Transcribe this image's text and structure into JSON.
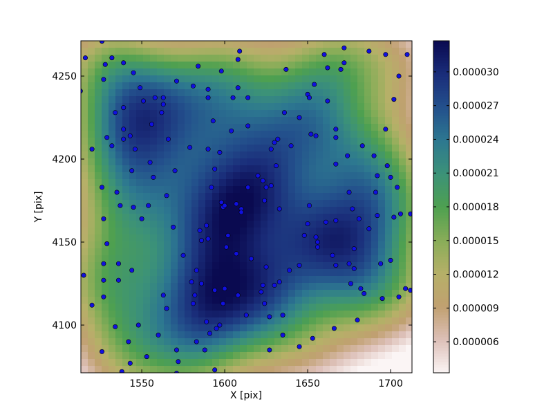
{
  "chart_data": {
    "type": "scatter-density",
    "xlabel": "X [pix]",
    "ylabel": "Y [pix]",
    "xlim": [
      1513.3,
      1712.9
    ],
    "ylim": [
      4071.25,
      4271.25
    ],
    "xticks": [
      1550,
      1600,
      1650,
      1700
    ],
    "yticks": [
      4100,
      4150,
      4200,
      4250
    ],
    "clim": [
      3.24e-06,
      3.276e-05
    ],
    "cticks": [
      {
        "value": 6e-06,
        "label": "0.000006"
      },
      {
        "value": 9e-06,
        "label": "0.000009"
      },
      {
        "value": 1.2e-05,
        "label": "0.000012"
      },
      {
        "value": 1.5e-05,
        "label": "0.000015"
      },
      {
        "value": 1.8e-05,
        "label": "0.000018"
      },
      {
        "value": 2.1e-05,
        "label": "0.000021"
      },
      {
        "value": 2.4e-05,
        "label": "0.000024"
      },
      {
        "value": 2.7e-05,
        "label": "0.000027"
      },
      {
        "value": 3e-05,
        "label": "0.000030"
      }
    ],
    "colormap": [
      "#fbf5f5",
      "#ddc0b8",
      "#c0a070",
      "#b6b068",
      "#88ad58",
      "#4ea050",
      "#3c9278",
      "#2d7890",
      "#23508c",
      "#1a2d7a",
      "#0a0a50"
    ],
    "series": [
      {
        "color": "#1010e0",
        "x": [
          1526,
          1516,
          1532,
          1528,
          1539,
          1527,
          1545,
          1513,
          1549,
          1558,
          1551,
          1563,
          1534,
          1539,
          1539,
          1529,
          1539,
          1532,
          1543,
          1556,
          1562,
          1563,
          1546,
          1566,
          1520,
          1526,
          1527,
          1535,
          1537,
          1545,
          1550,
          1544,
          1555,
          1557,
          1565,
          1570,
          1579,
          1571,
          1581,
          1590,
          1590,
          1584,
          1598,
          1609,
          1608,
          1608,
          1605,
          1614,
          1614,
          1604,
          1590,
          1597,
          1593,
          1630,
          1628,
          1632,
          1636,
          1640,
          1645,
          1650,
          1637,
          1651,
          1660,
          1654,
          1652,
          1662,
          1655,
          1662,
          1672,
          1672,
          1670,
          1667,
          1667,
          1674,
          1667,
          1687,
          1697,
          1710,
          1705,
          1702,
          1697,
          1683,
          1690,
          1698,
          1700,
          1692,
          1704,
          1691,
          1702,
          1712,
          1706,
          1675,
          1677,
          1681,
          1661,
          1667,
          1655,
          1656,
          1650,
          1651,
          1633,
          1631,
          1620,
          1623,
          1625,
          1614,
          1628,
          1624,
          1610,
          1607,
          1610,
          1599,
          1594,
          1592,
          1598,
          1600,
          1590,
          1585,
          1589,
          1586,
          1583,
          1602,
          1601,
          1616,
          1625,
          1623,
          1630,
          1633,
          1639,
          1645,
          1648,
          1656,
          1665,
          1667,
          1678,
          1678,
          1675,
          1687,
          1692,
          1694,
          1700,
          1705,
          1709,
          1712,
          1695,
          1682,
          1684,
          1676,
          1680,
          1666,
          1653,
          1645,
          1635,
          1627,
          1635,
          1627,
          1624,
          1622,
          1613,
          1600,
          1594,
          1591,
          1599,
          1597,
          1582,
          1586,
          1595,
          1580,
          1581,
          1589,
          1588,
          1583,
          1571,
          1572,
          1565,
          1563,
          1548,
          1542,
          1553,
          1543,
          1534,
          1527,
          1520,
          1527,
          1526,
          1536,
          1544,
          1536,
          1529,
          1527,
          1554,
          1569,
          1575,
          1560,
          1608,
          1607,
          1594,
          1571,
          1538,
          1515
        ],
        "values": [
          4271,
          4261,
          4261,
          4257,
          4258,
          4248,
          4252,
          4241,
          4243,
          4237,
          4235,
          4237,
          4228,
          4231,
          4218,
          4213,
          4212,
          4208,
          4214,
          4221,
          4228,
          4233,
          4206,
          4212,
          4206,
          4183,
          4164,
          4180,
          4172,
          4171,
          4164,
          4193,
          4198,
          4189,
          4178,
          4193,
          4207,
          4247,
          4244,
          4242,
          4237,
          4256,
          4253,
          4265,
          4260,
          4243,
          4237,
          4237,
          4220,
          4217,
          4206,
          4204,
          4223,
          4210,
          4206,
          4212,
          4228,
          4208,
          4225,
          4239,
          4254,
          4237,
          4263,
          4245,
          4215,
          4255,
          4214,
          4235,
          4267,
          4258,
          4254,
          4218,
          4213,
          4202,
          4197,
          4265,
          4263,
          4263,
          4250,
          4236,
          4218,
          4208,
          4202,
          4196,
          4189,
          4190,
          4183,
          4180,
          4165,
          4167,
          4167,
          4180,
          4170,
          4164,
          4162,
          4163,
          4153,
          4147,
          4161,
          4172,
          4170,
          4196,
          4190,
          4187,
          4183,
          4183,
          4184,
          4175,
          4170,
          4173,
          4168,
          4171,
          4194,
          4183,
          4174,
          4172,
          4152,
          4157,
          4160,
          4151,
          4133,
          4154,
          4147,
          4140,
          4135,
          4124,
          4124,
          4126,
          4133,
          4136,
          4154,
          4150,
          4142,
          4136,
          4134,
          4146,
          4137,
          4158,
          4166,
          4137,
          4139,
          4117,
          4122,
          4121,
          4116,
          4122,
          4119,
          4125,
          4103,
          4098,
          4092,
          4087,
          4094,
          4085,
          4106,
          4105,
          4113,
          4120,
          4106,
          4122,
          4121,
          4095,
          4113,
          4100,
          4118,
          4125,
          4098,
          4126,
          4113,
          4102,
          4085,
          4090,
          4085,
          4078,
          4110,
          4118,
          4100,
          4090,
          4081,
          4077,
          4099,
          4127,
          4112,
          4117,
          4084,
          4127,
          4133,
          4137,
          4149,
          4137,
          4172,
          4159,
          4142,
          4094,
          4118,
          4143,
          4073,
          4071,
          4072,
          4130
        ]
      }
    ]
  }
}
